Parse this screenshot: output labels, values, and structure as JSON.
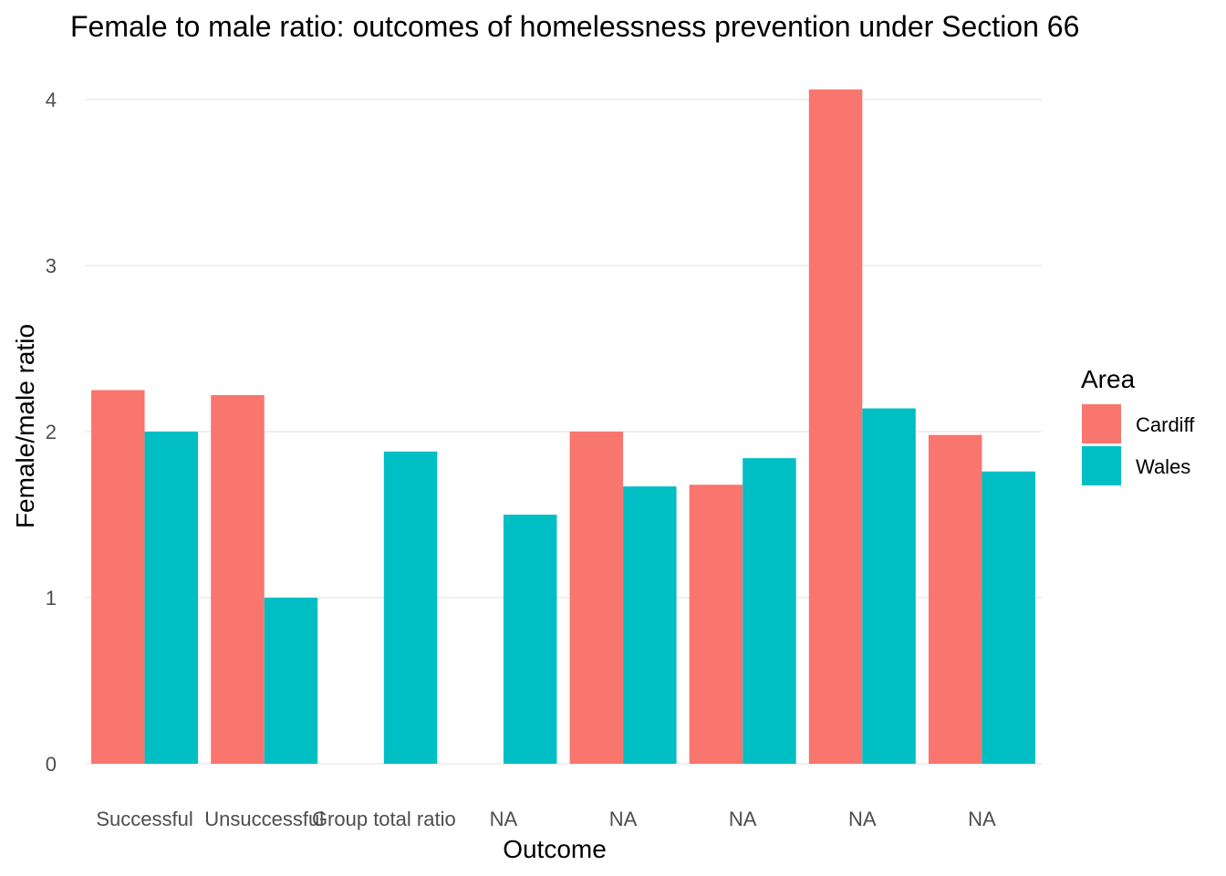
{
  "chart_data": {
    "type": "bar",
    "title": "Female to male ratio: outcomes of homelessness prevention under Section 66",
    "xlabel": "Outcome",
    "ylabel": "Female/male ratio",
    "categories": [
      "Successful",
      "Unsuccessful",
      "Group total ratio",
      "NA",
      "NA",
      "NA",
      "NA",
      "NA"
    ],
    "series": [
      {
        "name": "Cardiff",
        "color": "#F8766D",
        "values": [
          2.25,
          2.22,
          null,
          null,
          2.0,
          1.68,
          4.06,
          1.98
        ]
      },
      {
        "name": "Wales",
        "color": "#00BFC4",
        "values": [
          2.0,
          1.0,
          1.88,
          1.5,
          1.67,
          1.84,
          2.14,
          1.76
        ]
      }
    ],
    "ylim": [
      0,
      4.1
    ],
    "yticks": [
      0,
      1,
      2,
      3,
      4
    ],
    "grid": true,
    "legend": {
      "title": "Area",
      "position": "right"
    }
  }
}
